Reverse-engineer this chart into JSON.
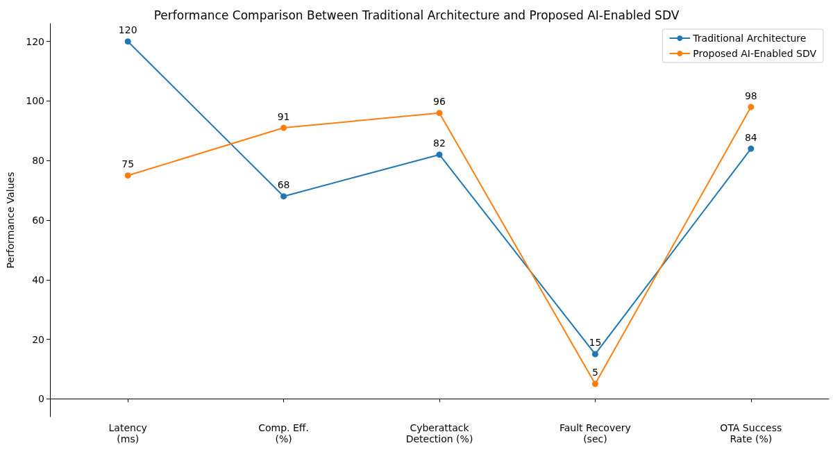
{
  "chart_data": {
    "type": "line",
    "title": "Performance Comparison Between Traditional Architecture and Proposed AI-Enabled SDV",
    "ylabel": "Performance Values",
    "categories": [
      "Latency\n(ms)",
      "Comp. Eff.\n(%)",
      "Cyberattack\nDetection (%)",
      "Fault Recovery\n(sec)",
      "OTA Success\nRate (%)"
    ],
    "series": [
      {
        "name": "Traditional Architecture",
        "color": "#1f77b4",
        "values": [
          120,
          68,
          82,
          15,
          84
        ]
      },
      {
        "name": "Proposed AI-Enabled SDV",
        "color": "#ff7f0e",
        "values": [
          75,
          91,
          96,
          5,
          98
        ]
      }
    ],
    "ylim": [
      -6,
      126
    ],
    "yticks": [
      0,
      20,
      40,
      60,
      80,
      100,
      120
    ],
    "data_labels": true,
    "grid": false,
    "legend": "top right",
    "marker": "circle",
    "line_style": "solid"
  }
}
